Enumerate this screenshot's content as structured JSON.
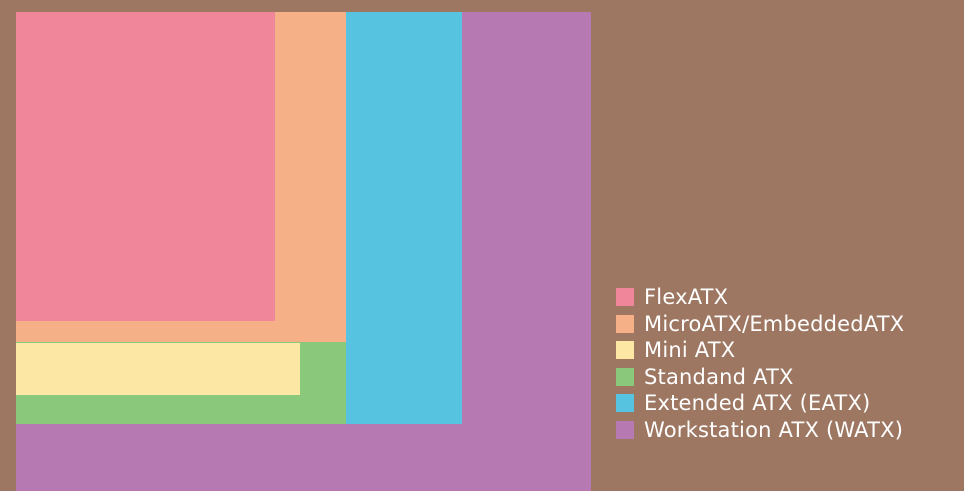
{
  "colors": {
    "background": "#9d7762",
    "flexatx": "#ef8699",
    "microatx": "#f6b088",
    "miniatx": "#fde7a5",
    "standardatx": "#8ac97c",
    "eatx": "#56c4e0",
    "watx": "#b679b1",
    "text": "#ffffff"
  },
  "boards": [
    {
      "id": "watx",
      "name": "Workstation ATX (WATX)",
      "color": "#b679b1"
    },
    {
      "id": "eatx",
      "name": "Extended ATX (EATX)",
      "color": "#56c4e0"
    },
    {
      "id": "std",
      "name": "Standand ATX",
      "color": "#8ac97c"
    },
    {
      "id": "micro",
      "name": "MicroATX/EmbeddedATX",
      "color": "#f6b088"
    },
    {
      "id": "mini",
      "name": "Mini ATX",
      "color": "#fde7a5"
    },
    {
      "id": "flex",
      "name": "FlexATX",
      "color": "#ef8699"
    }
  ],
  "legend": {
    "items": [
      {
        "label": "FlexATX",
        "color": "#ef8699"
      },
      {
        "label": "MicroATX/EmbeddedATX",
        "color": "#f6b088"
      },
      {
        "label": "Mini ATX",
        "color": "#fde7a5"
      },
      {
        "label": "Standand ATX",
        "color": "#8ac97c"
      },
      {
        "label": "Extended ATX (EATX)",
        "color": "#56c4e0"
      },
      {
        "label": "Workstation ATX (WATX)",
        "color": "#b679b1"
      }
    ]
  }
}
